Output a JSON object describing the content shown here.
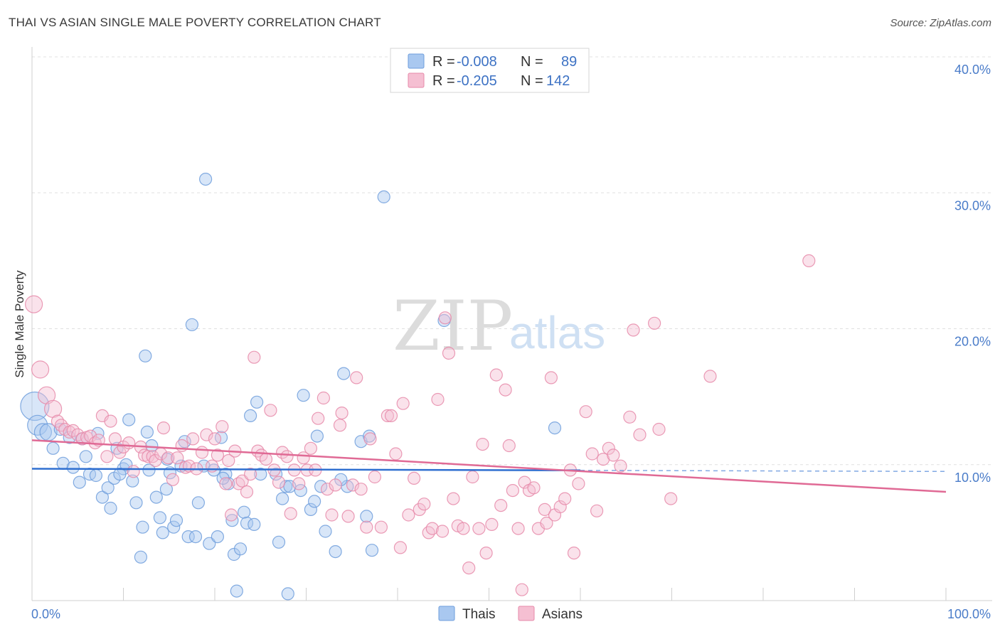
{
  "title": "THAI VS ASIAN SINGLE MALE POVERTY CORRELATION CHART",
  "source": "Source: ZipAtlas.com",
  "watermark": {
    "zip": "ZIP",
    "atlas": "atlas"
  },
  "legend": {
    "r_label": "R =",
    "n_label": "N =",
    "rows": [
      {
        "r": "-0.008",
        "n": "89",
        "color": "#a9c8f0",
        "stroke": "#6e9edc"
      },
      {
        "r": "-0.205",
        "n": "142",
        "color": "#f5bfd2",
        "stroke": "#e68aa9"
      }
    ]
  },
  "chart_data": {
    "type": "scatter",
    "title": "THAI VS ASIAN SINGLE MALE POVERTY CORRELATION CHART",
    "xlabel": "",
    "ylabel": "Single Male Poverty",
    "xlim": [
      0,
      100
    ],
    "ylim": [
      0,
      40
    ],
    "x_tick_labels": [
      "0.0%",
      "100.0%"
    ],
    "y_ticks": [
      10,
      20,
      30,
      40
    ],
    "y_tick_labels": [
      "10.0%",
      "20.0%",
      "30.0%",
      "40.0%"
    ],
    "grid": true,
    "legend_position": "top-center",
    "series": [
      {
        "name": "Thais",
        "color": "#6e9edc",
        "fill": "#a9c8f0",
        "trend": {
          "x": [
            0,
            100
          ],
          "y": [
            9.7,
            9.5
          ],
          "solid_until": 60,
          "color": "#2f6fd0"
        },
        "points": [
          [
            0.3,
            14.3,
            4
          ],
          [
            0.6,
            12.9,
            3
          ],
          [
            1.2,
            12.4,
            2
          ],
          [
            1.8,
            12.4,
            2
          ],
          [
            2.3,
            11.2,
            1
          ],
          [
            3.4,
            10.1,
            1
          ],
          [
            4.1,
            12,
            1
          ],
          [
            4.5,
            9.8,
            1
          ],
          [
            5.2,
            8.7,
            1
          ],
          [
            5.9,
            10.6,
            1
          ],
          [
            6.3,
            9.3,
            1
          ],
          [
            7,
            9.2,
            1
          ],
          [
            7.2,
            12.3,
            1
          ],
          [
            7.7,
            7.6,
            1
          ],
          [
            8.3,
            8.3,
            1
          ],
          [
            8.6,
            6.8,
            1
          ],
          [
            9,
            9,
            1
          ],
          [
            9.3,
            11.2,
            1
          ],
          [
            10,
            9.7,
            1
          ],
          [
            10.3,
            10,
            1
          ],
          [
            10.6,
            13.3,
            1
          ],
          [
            11,
            8.8,
            1
          ],
          [
            11.4,
            7.2,
            1
          ],
          [
            11.9,
            3.2,
            1
          ],
          [
            12.1,
            5.4,
            1
          ],
          [
            12.4,
            18,
            1
          ],
          [
            12.8,
            9.6,
            1
          ],
          [
            13.1,
            11.4,
            1
          ],
          [
            13.6,
            7.6,
            1
          ],
          [
            14,
            6.1,
            1
          ],
          [
            14.3,
            5,
            1
          ],
          [
            14.8,
            10.4,
            1
          ],
          [
            15.1,
            9.4,
            1
          ],
          [
            15.5,
            5.4,
            1
          ],
          [
            15.8,
            5.9,
            1
          ],
          [
            16.3,
            9.9,
            1
          ],
          [
            16.7,
            11.7,
            1
          ],
          [
            17.1,
            4.7,
            1
          ],
          [
            17.5,
            20.3,
            1
          ],
          [
            17.9,
            4.7,
            1
          ],
          [
            18.2,
            7.2,
            1
          ],
          [
            18.8,
            9.9,
            1
          ],
          [
            19,
            31,
            1
          ],
          [
            19.4,
            4.2,
            1
          ],
          [
            19.9,
            9.6,
            1
          ],
          [
            20.3,
            4.7,
            1
          ],
          [
            20.7,
            12,
            1
          ],
          [
            21.2,
            9.3,
            1
          ],
          [
            21.5,
            8.6,
            1
          ],
          [
            21.9,
            5.9,
            1
          ],
          [
            22.1,
            3.4,
            1
          ],
          [
            22.4,
            0.7,
            1
          ],
          [
            22.8,
            3.8,
            1
          ],
          [
            23.2,
            6.5,
            1
          ],
          [
            23.5,
            5.7,
            1
          ],
          [
            23.9,
            13.6,
            1
          ],
          [
            24.3,
            5.6,
            1
          ],
          [
            24.6,
            14.6,
            1
          ],
          [
            25,
            9.3,
            1
          ],
          [
            27,
            4.3,
            1
          ],
          [
            27.4,
            7.5,
            1
          ],
          [
            27.8,
            8.4,
            1
          ],
          [
            28,
            0.5,
            1
          ],
          [
            28.2,
            8.4,
            1
          ],
          [
            29.4,
            8.1,
            1
          ],
          [
            29.7,
            15.1,
            1
          ],
          [
            30.5,
            6.7,
            1
          ],
          [
            30.9,
            7.3,
            1
          ],
          [
            31.2,
            12.1,
            1
          ],
          [
            31.6,
            8.4,
            1
          ],
          [
            32.1,
            5.1,
            1
          ],
          [
            33.2,
            3.6,
            1
          ],
          [
            34.1,
            16.7,
            1
          ],
          [
            34.5,
            8.4,
            1
          ],
          [
            36,
            11.7,
            1
          ],
          [
            36.6,
            6.2,
            1
          ],
          [
            36.9,
            12.1,
            1
          ],
          [
            37.2,
            3.7,
            1
          ],
          [
            38.5,
            29.7,
            1
          ],
          [
            45.1,
            20.6,
            1
          ],
          [
            57.2,
            12.7,
            1
          ],
          [
            12.6,
            12.4,
            1
          ],
          [
            3.1,
            12.6,
            1
          ],
          [
            5.5,
            11.9,
            1
          ],
          [
            9.6,
            9.3,
            1
          ],
          [
            14.7,
            8.2,
            1
          ],
          [
            20.9,
            9,
            1
          ],
          [
            26.7,
            9.3,
            1
          ],
          [
            33.8,
            8.9,
            1
          ]
        ]
      },
      {
        "name": "Asians",
        "color": "#e68aa9",
        "fill": "#f5bfd2",
        "trend": {
          "x": [
            0,
            100
          ],
          "y": [
            11.8,
            8.0
          ],
          "color": "#e06a95"
        },
        "points": [
          [
            0.2,
            21.8,
            2
          ],
          [
            0.9,
            17,
            2
          ],
          [
            1.6,
            15.1,
            2
          ],
          [
            2.3,
            14.1,
            2
          ],
          [
            2.8,
            13.2,
            1
          ],
          [
            3.2,
            12.9,
            1
          ],
          [
            3.6,
            12.6,
            1
          ],
          [
            4.1,
            12.4,
            1
          ],
          [
            4.5,
            12.5,
            1
          ],
          [
            5,
            12.2,
            1
          ],
          [
            5.5,
            11.9,
            1
          ],
          [
            6,
            12,
            1
          ],
          [
            6.4,
            12.1,
            1
          ],
          [
            6.9,
            11.6,
            1
          ],
          [
            7.3,
            11.8,
            1
          ],
          [
            7.7,
            13.6,
            1
          ],
          [
            8.2,
            10.6,
            1
          ],
          [
            8.6,
            13.2,
            1
          ],
          [
            9.1,
            11.9,
            1
          ],
          [
            9.6,
            10.9,
            1
          ],
          [
            10,
            11.3,
            1
          ],
          [
            10.6,
            11.6,
            1
          ],
          [
            11.1,
            9.5,
            1
          ],
          [
            11.9,
            11.3,
            1
          ],
          [
            12.3,
            10.7,
            1
          ],
          [
            12.7,
            10.6,
            1
          ],
          [
            13.2,
            10.6,
            1
          ],
          [
            13.5,
            10.3,
            1
          ],
          [
            14.1,
            10.8,
            1
          ],
          [
            14.4,
            12.7,
            1
          ],
          [
            14.9,
            10.5,
            1
          ],
          [
            15.4,
            8.9,
            1
          ],
          [
            15.9,
            10.5,
            1
          ],
          [
            16.4,
            11.4,
            1
          ],
          [
            16.8,
            9.8,
            1
          ],
          [
            17.2,
            9.9,
            1
          ],
          [
            17.6,
            11.9,
            1
          ],
          [
            18,
            9.7,
            1
          ],
          [
            18.6,
            10.9,
            1
          ],
          [
            19.1,
            12.2,
            1
          ],
          [
            19.7,
            9.9,
            1
          ],
          [
            20,
            11.9,
            1
          ],
          [
            20.3,
            10.7,
            1
          ],
          [
            20.8,
            12.8,
            1
          ],
          [
            21.2,
            8.6,
            1
          ],
          [
            21.5,
            10.3,
            1
          ],
          [
            21.8,
            6.3,
            1
          ],
          [
            22.2,
            11,
            1
          ],
          [
            22.6,
            8.6,
            1
          ],
          [
            23,
            8.8,
            1
          ],
          [
            23.5,
            8,
            1
          ],
          [
            23.9,
            9.3,
            1
          ],
          [
            24.3,
            17.9,
            1
          ],
          [
            24.7,
            11,
            1
          ],
          [
            25.1,
            10.7,
            1
          ],
          [
            25.6,
            10.4,
            1
          ],
          [
            26.1,
            14,
            1
          ],
          [
            26.5,
            9.6,
            1
          ],
          [
            27,
            8.7,
            1
          ],
          [
            27.4,
            10.9,
            1
          ],
          [
            27.9,
            10.6,
            1
          ],
          [
            28.3,
            6.4,
            1
          ],
          [
            28.7,
            9.6,
            1
          ],
          [
            29.2,
            8.6,
            1
          ],
          [
            29.7,
            10.5,
            1
          ],
          [
            30.1,
            9.6,
            1
          ],
          [
            30.5,
            11.2,
            1
          ],
          [
            31,
            9.6,
            1
          ],
          [
            31.3,
            13.4,
            1
          ],
          [
            31.9,
            14.9,
            1
          ],
          [
            32.3,
            8.2,
            1
          ],
          [
            32.8,
            6.3,
            1
          ],
          [
            33.2,
            8.5,
            1
          ],
          [
            33.7,
            12.9,
            1
          ],
          [
            33.9,
            13.8,
            1
          ],
          [
            34.6,
            6.2,
            1
          ],
          [
            35.1,
            8.5,
            1
          ],
          [
            35.5,
            16.4,
            1
          ],
          [
            36,
            8.2,
            1
          ],
          [
            36.6,
            5.4,
            1
          ],
          [
            37,
            11.9,
            1
          ],
          [
            37.5,
            9.1,
            1
          ],
          [
            38.2,
            5.4,
            1
          ],
          [
            38.9,
            13.6,
            1
          ],
          [
            39.3,
            13.6,
            1
          ],
          [
            39.8,
            10.8,
            1
          ],
          [
            40.3,
            3.9,
            1
          ],
          [
            40.6,
            14.5,
            1
          ],
          [
            41.2,
            6.3,
            1
          ],
          [
            41.8,
            9,
            1
          ],
          [
            42.4,
            6.7,
            1
          ],
          [
            42.9,
            7.1,
            1
          ],
          [
            43.4,
            5,
            1
          ],
          [
            43.8,
            5.3,
            1
          ],
          [
            44.4,
            14.8,
            1
          ],
          [
            44.9,
            5.1,
            1
          ],
          [
            45.2,
            20.8,
            1
          ],
          [
            45.6,
            18.2,
            1
          ],
          [
            46.1,
            7.5,
            1
          ],
          [
            46.6,
            5.5,
            1
          ],
          [
            47.2,
            5.3,
            1
          ],
          [
            47.8,
            2.4,
            1
          ],
          [
            48.2,
            9.1,
            1
          ],
          [
            48.9,
            5.3,
            1
          ],
          [
            49.3,
            11.5,
            1
          ],
          [
            49.7,
            3.5,
            1
          ],
          [
            50.3,
            5.6,
            1
          ],
          [
            50.8,
            16.6,
            1
          ],
          [
            51.3,
            7,
            1
          ],
          [
            51.8,
            15.5,
            1
          ],
          [
            52.2,
            11.4,
            1
          ],
          [
            52.6,
            8.1,
            1
          ],
          [
            53.2,
            5.3,
            1
          ],
          [
            53.6,
            0.8,
            1
          ],
          [
            53.9,
            8.7,
            1
          ],
          [
            54.4,
            8.1,
            1
          ],
          [
            54.9,
            8.3,
            1
          ],
          [
            55.4,
            5.3,
            1
          ],
          [
            56.1,
            6.7,
            1
          ],
          [
            56.3,
            5.7,
            1
          ],
          [
            56.8,
            16.4,
            1
          ],
          [
            57.2,
            6.3,
            1
          ],
          [
            57.8,
            6.9,
            1
          ],
          [
            58.3,
            7.5,
            1
          ],
          [
            58.9,
            9.6,
            1
          ],
          [
            59.3,
            3.5,
            1
          ],
          [
            59.8,
            8.6,
            1
          ],
          [
            60.6,
            13.9,
            1
          ],
          [
            61.3,
            10.8,
            1
          ],
          [
            61.8,
            6.6,
            1
          ],
          [
            62.5,
            10.4,
            1
          ],
          [
            63.1,
            11.2,
            1
          ],
          [
            63.6,
            10.7,
            1
          ],
          [
            64.4,
            9.9,
            1
          ],
          [
            65.4,
            13.5,
            1
          ],
          [
            65.8,
            19.9,
            1
          ],
          [
            66.5,
            12.2,
            1
          ],
          [
            68.1,
            20.4,
            1
          ],
          [
            68.6,
            12.6,
            1
          ],
          [
            69.9,
            7.5,
            1
          ],
          [
            74.2,
            16.5,
            1
          ],
          [
            85,
            25,
            1
          ]
        ]
      }
    ]
  },
  "bottom_legend": [
    {
      "label": "Thais",
      "color": "#a9c8f0",
      "stroke": "#6e9edc"
    },
    {
      "label": "Asians",
      "color": "#f5bfd2",
      "stroke": "#e68aa9"
    }
  ]
}
